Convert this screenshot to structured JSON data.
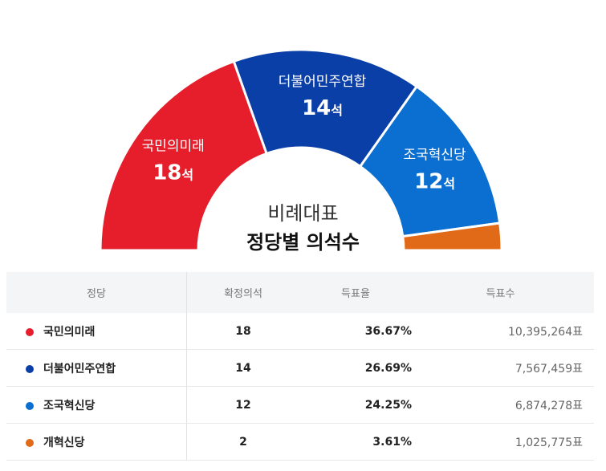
{
  "chart_data": {
    "type": "pie",
    "center_label": "비례대표",
    "center_title": "정당별 의석수",
    "seat_unit": "석",
    "vote_unit": "표",
    "parties": [
      {
        "name": "국민의미래",
        "seats": 18,
        "vote_rate": "36.67%",
        "votes": "10,395,264",
        "color": "#e61e2b"
      },
      {
        "name": "더불어민주연합",
        "seats": 14,
        "vote_rate": "26.69%",
        "votes": "7,567,459",
        "color": "#0b3fa8"
      },
      {
        "name": "조국혁신당",
        "seats": 12,
        "vote_rate": "24.25%",
        "votes": "6,874,278",
        "color": "#0a6fd0"
      },
      {
        "name": "개혁신당",
        "seats": 2,
        "vote_rate": "3.61%",
        "votes": "1,025,775",
        "color": "#e06a17"
      }
    ]
  },
  "table": {
    "headers": [
      "정당",
      "확정의석",
      "득표율",
      "득표수"
    ]
  }
}
